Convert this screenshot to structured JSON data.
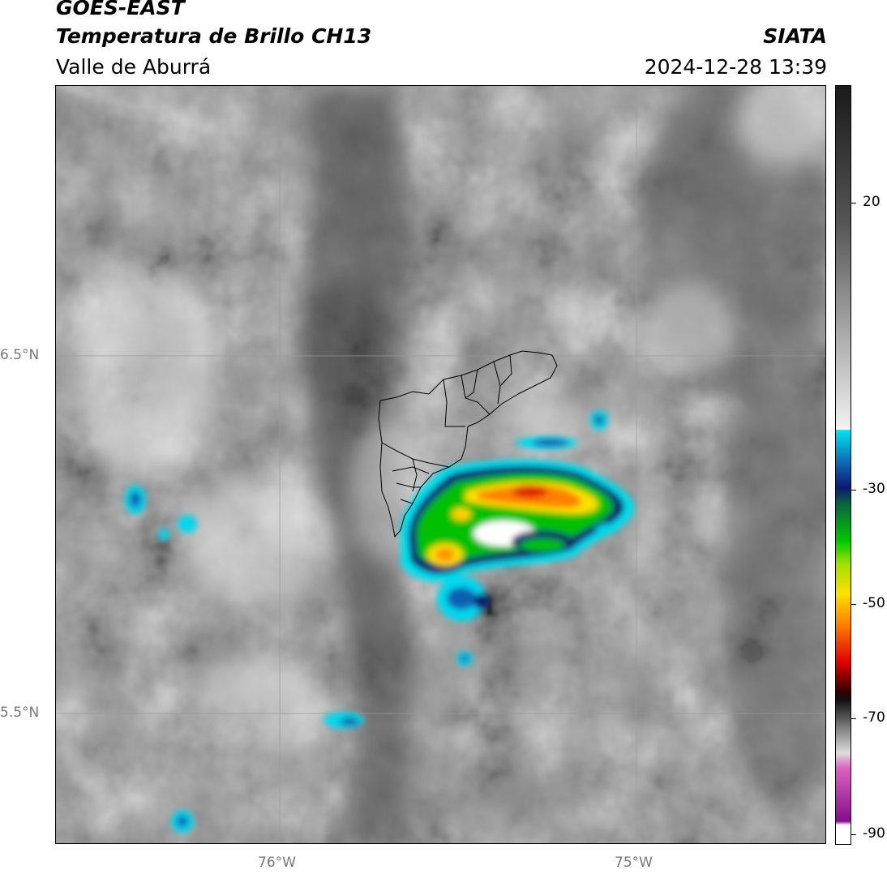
{
  "header": {
    "line1": "GOES-EAST",
    "line2": "Temperatura de Brillo CH13",
    "subtitle": "Valle de Aburrá",
    "org": "SIATA",
    "datetime": "2024-12-28 13:39"
  },
  "map": {
    "lat_labels": [
      "6.5°N",
      "5.5°N"
    ],
    "lon_labels": [
      "76°W",
      "75°W"
    ]
  },
  "colorbar": {
    "ticks": [
      "20",
      "-30",
      "-50",
      "-70",
      "-90"
    ],
    "tick_values": [
      20,
      -30,
      -50,
      -70,
      -90
    ],
    "range": [
      -90,
      40
    ],
    "colors": {
      "grayscale_warm": "#1a1a1a",
      "grayscale_cold": "#f0f0f0",
      "cyan": "#00e5f0",
      "blue": "#1060b0",
      "navy": "#0a1a70",
      "green": "#00c800",
      "yellow": "#ffe000",
      "orange": "#ff8000",
      "red": "#e00000",
      "magenta": "#e060c0",
      "purple": "#80108a"
    }
  }
}
